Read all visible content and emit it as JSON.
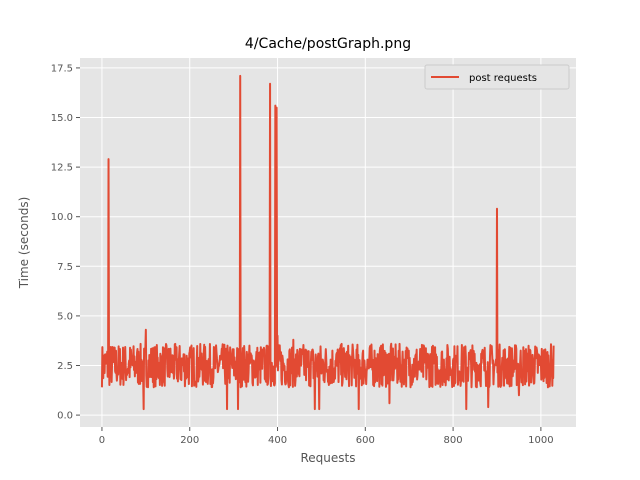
{
  "chart_data": {
    "type": "line",
    "title": "4/Cache/postGraph.png",
    "xlabel": "Requests",
    "ylabel": "Time (seconds)",
    "xlim": [
      -50,
      1080
    ],
    "ylim": [
      -0.6,
      18.0
    ],
    "xticks": [
      0,
      200,
      400,
      600,
      800,
      1000
    ],
    "xtick_labels": [
      "0",
      "200",
      "400",
      "600",
      "800",
      "1000"
    ],
    "yticks": [
      0.0,
      2.5,
      5.0,
      7.5,
      10.0,
      12.5,
      15.0,
      17.5
    ],
    "ytick_labels": [
      "0.0",
      "2.5",
      "5.0",
      "7.5",
      "10.0",
      "12.5",
      "15.0",
      "17.5"
    ],
    "grid": true,
    "legend_position": "top-right",
    "series_count": 1030,
    "series_base": 2.5,
    "series_amplitude": 1.1,
    "series": [
      {
        "name": "post requests",
        "color": "#e24a33",
        "values": "~1030 points fluctuating between ~1.5 and ~3.5 s",
        "spikes": [
          {
            "x": 15,
            "y": 12.9
          },
          {
            "x": 100,
            "y": 4.3
          },
          {
            "x": 315,
            "y": 17.1
          },
          {
            "x": 383,
            "y": 16.7
          },
          {
            "x": 395,
            "y": 15.6
          },
          {
            "x": 398,
            "y": 15.5
          },
          {
            "x": 400,
            "y": 4.0
          },
          {
            "x": 436,
            "y": 3.8
          },
          {
            "x": 900,
            "y": 10.4
          }
        ],
        "dips": [
          {
            "x": 95,
            "y": 0.3
          },
          {
            "x": 285,
            "y": 0.3
          },
          {
            "x": 310,
            "y": 0.3
          },
          {
            "x": 485,
            "y": 0.3
          },
          {
            "x": 495,
            "y": 0.3
          },
          {
            "x": 585,
            "y": 0.3
          },
          {
            "x": 655,
            "y": 0.6
          },
          {
            "x": 830,
            "y": 0.3
          },
          {
            "x": 880,
            "y": 0.4
          },
          {
            "x": 950,
            "y": 1.0
          }
        ]
      }
    ]
  }
}
